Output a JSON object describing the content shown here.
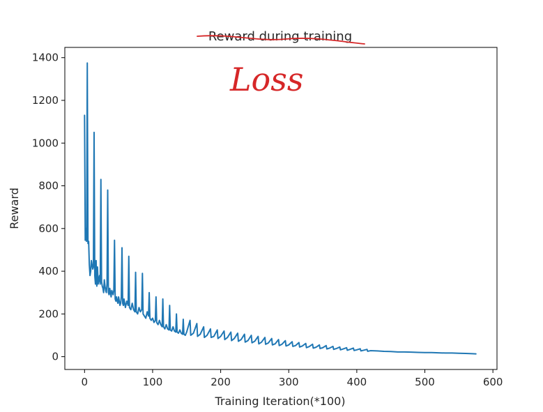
{
  "chart_data": {
    "type": "line",
    "title": "Reward during training",
    "title_strikethrough": true,
    "annotation": "Loss",
    "xlabel": "Training Iteration(*100)",
    "ylabel": "Reward",
    "xlim": [
      -29,
      606
    ],
    "ylim": [
      -60,
      1448
    ],
    "xticks": [
      0,
      100,
      200,
      300,
      400,
      500,
      600
    ],
    "yticks": [
      0,
      200,
      400,
      600,
      800,
      1000,
      1200,
      1400
    ],
    "grid": false,
    "line_color": "#1f77b4",
    "annotation_color": "#d62728",
    "series": [
      {
        "x": [
          0,
          1,
          2,
          3,
          4,
          5,
          6,
          7,
          8,
          9,
          10,
          11,
          12,
          13,
          14,
          15,
          16,
          17,
          18,
          19,
          20,
          21,
          22,
          23,
          24,
          25,
          26,
          27,
          28,
          29,
          30,
          31,
          32,
          33,
          34,
          35,
          36,
          37,
          38,
          39,
          40,
          41,
          42,
          43,
          44,
          45,
          46,
          47,
          48,
          49,
          50,
          51,
          52,
          53,
          54,
          55,
          56,
          57,
          58,
          59,
          60,
          62,
          64,
          65,
          66,
          68,
          70,
          72,
          74,
          75,
          76,
          78,
          80,
          82,
          84,
          85,
          86,
          88,
          90,
          92,
          94,
          95,
          96,
          98,
          100,
          102,
          104,
          105,
          106,
          108,
          110,
          112,
          114,
          115,
          116,
          118,
          120,
          122,
          124,
          125,
          126,
          128,
          130,
          132,
          134,
          135,
          136,
          138,
          140,
          142,
          144,
          145,
          146,
          148,
          150,
          155,
          156,
          160,
          165,
          166,
          170,
          175,
          176,
          180,
          185,
          186,
          190,
          195,
          196,
          200,
          205,
          206,
          210,
          215,
          216,
          220,
          225,
          226,
          230,
          235,
          236,
          240,
          245,
          246,
          250,
          255,
          256,
          260,
          265,
          266,
          270,
          275,
          276,
          280,
          285,
          286,
          290,
          295,
          296,
          300,
          305,
          306,
          310,
          315,
          316,
          320,
          325,
          326,
          330,
          335,
          336,
          340,
          345,
          346,
          350,
          355,
          356,
          360,
          365,
          366,
          370,
          375,
          376,
          380,
          385,
          386,
          390,
          395,
          396,
          400,
          405,
          406,
          410,
          415,
          416,
          420,
          430,
          440,
          450,
          460,
          470,
          480,
          490,
          500,
          510,
          520,
          530,
          540,
          550,
          560,
          570,
          575
        ],
        "y": [
          1130,
          545,
          600,
          540,
          1375,
          530,
          540,
          430,
          380,
          400,
          450,
          430,
          410,
          420,
          1050,
          380,
          340,
          450,
          330,
          420,
          340,
          360,
          380,
          340,
          830,
          350,
          330,
          320,
          300,
          360,
          330,
          310,
          300,
          340,
          780,
          300,
          290,
          320,
          300,
          280,
          310,
          300,
          290,
          310,
          545,
          270,
          260,
          280,
          260,
          250,
          280,
          260,
          240,
          250,
          280,
          510,
          250,
          240,
          270,
          250,
          230,
          260,
          240,
          470,
          230,
          220,
          250,
          220,
          210,
          395,
          210,
          200,
          230,
          210,
          220,
          390,
          200,
          190,
          180,
          210,
          190,
          300,
          180,
          170,
          180,
          160,
          170,
          280,
          160,
          150,
          170,
          150,
          140,
          270,
          140,
          130,
          150,
          130,
          125,
          240,
          125,
          120,
          140,
          120,
          115,
          200,
          115,
          110,
          125,
          110,
          105,
          175,
          105,
          100,
          115,
          170,
          100,
          110,
          155,
          95,
          105,
          140,
          90,
          100,
          130,
          90,
          95,
          125,
          85,
          95,
          120,
          80,
          90,
          115,
          75,
          85,
          110,
          72,
          80,
          105,
          68,
          75,
          100,
          65,
          72,
          95,
          60,
          68,
          90,
          58,
          64,
          85,
          55,
          60,
          80,
          52,
          58,
          75,
          50,
          55,
          70,
          48,
          52,
          66,
          45,
          50,
          62,
          42,
          47,
          58,
          40,
          44,
          55,
          38,
          42,
          52,
          36,
          40,
          48,
          34,
          38,
          45,
          32,
          36,
          42,
          30,
          34,
          40,
          29,
          32,
          37,
          27,
          30,
          34,
          25,
          28,
          27,
          25,
          24,
          22,
          22,
          21,
          20,
          19,
          19,
          18,
          17,
          17,
          16,
          15,
          14,
          13
        ]
      }
    ]
  }
}
